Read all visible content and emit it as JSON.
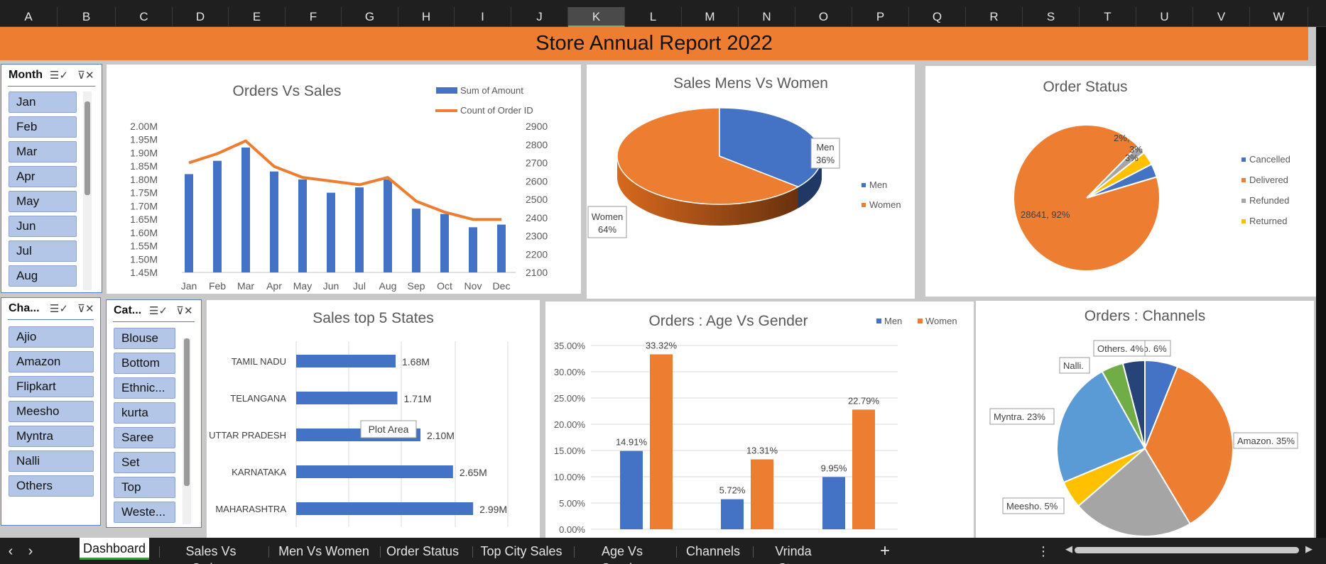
{
  "sheet": {
    "columns": [
      "A",
      "B",
      "C",
      "D",
      "E",
      "F",
      "G",
      "H",
      "I",
      "J",
      "K",
      "L",
      "M",
      "N",
      "O",
      "P",
      "Q",
      "R",
      "S",
      "T",
      "U",
      "V",
      "W"
    ],
    "selected_column": "K"
  },
  "banner": {
    "title": "Store Annual Report 2022"
  },
  "slicers": {
    "month": {
      "header": "Month",
      "items": [
        "Jan",
        "Feb",
        "Mar",
        "Apr",
        "May",
        "Jun",
        "Jul",
        "Aug"
      ]
    },
    "channel": {
      "header": "Cha...",
      "items": [
        "Ajio",
        "Amazon",
        "Flipkart",
        "Meesho",
        "Myntra",
        "Nalli",
        "Others"
      ]
    },
    "category": {
      "header": "Cat...",
      "items": [
        "Blouse",
        "Bottom",
        "Ethnic...",
        "kurta",
        "Saree",
        "Set",
        "Top",
        "Weste..."
      ]
    },
    "multiselect_icon": "multi-select-icon",
    "clear_filter_icon": "clear-filter-icon"
  },
  "charts": {
    "orders_vs_sales": {
      "title": "Orders Vs Sales",
      "legend": [
        "Sum of Amount",
        "Count of Order ID"
      ],
      "y_left_ticks": [
        "2.00M",
        "1.95M",
        "1.90M",
        "1.85M",
        "1.80M",
        "1.75M",
        "1.70M",
        "1.65M",
        "1.60M",
        "1.55M",
        "1.50M",
        "1.45M"
      ],
      "y_right_ticks": [
        "2900",
        "2800",
        "2700",
        "2600",
        "2500",
        "2400",
        "2300",
        "2200",
        "2100"
      ]
    },
    "sales_men_women": {
      "title": "Sales Mens Vs Women",
      "legend": [
        "Men",
        "Women"
      ],
      "label_men": "Men",
      "label_men_pct": "36%",
      "label_women": "Women",
      "label_women_pct": "64%"
    },
    "order_status": {
      "title": "Order Status",
      "legend": [
        "Cancelled",
        "Delivered",
        "Refunded",
        "Returned"
      ],
      "labels": [
        "2%,",
        "3%",
        "3%",
        "28641, 92%"
      ]
    },
    "top_states": {
      "title": "Sales top 5 States",
      "tooltip": "Plot Area"
    },
    "age_gender": {
      "title": "Orders : Age Vs Gender",
      "legend": [
        "Men",
        "Women"
      ],
      "y_ticks": [
        "35.00%",
        "30.00%",
        "25.00%",
        "20.00%",
        "15.00%",
        "10.00%",
        "5.00%",
        "0.00%"
      ]
    },
    "channels": {
      "title": "Orders : Channels"
    }
  },
  "chart_data": [
    {
      "type": "bar",
      "title": "Orders Vs Sales",
      "categories": [
        "Jan",
        "Feb",
        "Mar",
        "Apr",
        "May",
        "Jun",
        "Jul",
        "Aug",
        "Sep",
        "Oct",
        "Nov",
        "Dec"
      ],
      "series": [
        {
          "name": "Sum of Amount",
          "type": "bar",
          "axis": "left",
          "values": [
            1.82,
            1.87,
            1.92,
            1.83,
            1.8,
            1.75,
            1.77,
            1.8,
            1.69,
            1.67,
            1.62,
            1.63
          ]
        },
        {
          "name": "Count of Order ID",
          "type": "line",
          "axis": "right",
          "values": [
            2700,
            2750,
            2820,
            2680,
            2620,
            2600,
            2580,
            2620,
            2490,
            2430,
            2390,
            2390
          ]
        }
      ],
      "ylim_left": [
        1.45,
        2.0
      ],
      "ylim_right": [
        2100,
        2900
      ],
      "legend": "top-right"
    },
    {
      "type": "pie",
      "title": "Sales Mens Vs Women",
      "labels": [
        "Men",
        "Women"
      ],
      "values": [
        36,
        64
      ],
      "legend": "right"
    },
    {
      "type": "pie",
      "title": "Order Status",
      "labels": [
        "Cancelled",
        "Delivered",
        "Refunded",
        "Returned"
      ],
      "values": [
        3,
        92,
        2,
        3
      ],
      "legend": "right"
    },
    {
      "type": "bar",
      "orientation": "horizontal",
      "title": "Sales top 5 States",
      "categories": [
        "TAMIL NADU",
        "TELANGANA",
        "UTTAR PRADESH",
        "KARNATAKA",
        "MAHARASHTRA"
      ],
      "values": [
        1.68,
        1.71,
        2.1,
        2.65,
        2.99
      ],
      "value_labels": [
        "1.68M",
        "1.71M",
        "2.10M",
        "2.65M",
        "2.99M"
      ],
      "xlim": [
        0,
        3.6
      ]
    },
    {
      "type": "bar",
      "title": "Orders : Age Vs Gender",
      "categories": [
        "",
        "",
        ""
      ],
      "series": [
        {
          "name": "Men",
          "values": [
            14.91,
            5.72,
            9.95
          ],
          "labels": [
            "14.91%",
            "5.72%",
            "9.95%"
          ]
        },
        {
          "name": "Women",
          "values": [
            33.32,
            13.31,
            22.79
          ],
          "labels": [
            "33.32%",
            "13.31%",
            "22.79%"
          ]
        }
      ],
      "ylim": [
        0,
        35
      ],
      "legend": "top-right"
    },
    {
      "type": "pie",
      "title": "Orders : Channels",
      "labels": [
        "Ajio",
        "Amazon",
        "Flipkart",
        "Meesho",
        "Myntra",
        "Nalli",
        "Others"
      ],
      "values": [
        6,
        35,
        22,
        5,
        23,
        4,
        4
      ],
      "slice_labels": [
        "Ajio. 6%",
        "Amazon. 35%",
        "",
        "Meesho. 5%",
        "Myntra. 23%",
        "Nalli.",
        "Others. 4%"
      ]
    }
  ],
  "colors": {
    "blue": "#4472c4",
    "orange": "#ed7d31",
    "gray": "#a5a5a5",
    "yellow": "#ffc000",
    "lightblue": "#5b9bd5",
    "green": "#70ad47",
    "navy": "#264478",
    "brown": "#9e480e"
  },
  "tabs": {
    "items": [
      "Dashboard",
      "Sales Vs Orders",
      "Men Vs Women",
      "Order Status",
      "Top City Sales",
      "Age Vs Gender",
      "Channels",
      "Vrinda Store"
    ],
    "active": "Dashboard",
    "add": "+",
    "more": "⋮",
    "prev": "‹",
    "next": "›"
  }
}
